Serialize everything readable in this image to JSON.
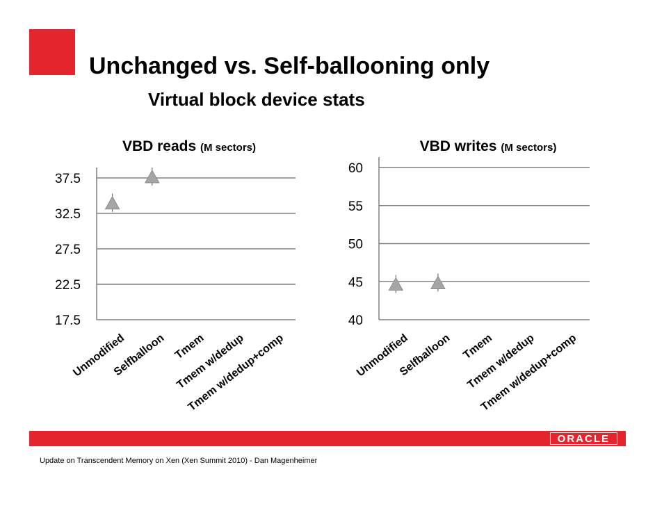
{
  "slide": {
    "title": "Unchanged vs. Self-ballooning only",
    "subtitle": "Virtual block device stats",
    "footer": "Update on Transcendent Memory on Xen (Xen Summit 2010) - Dan Magenheimer",
    "logo": "ORACLE",
    "accent_color": "#e4252c"
  },
  "chart_data": [
    {
      "type": "scatter",
      "title": "VBD reads",
      "title_unit": "(M sectors)",
      "categories": [
        "Unmodified",
        "Selfballoon",
        "Tmem",
        "Tmem w/dedup",
        "Tmem w/dedup+comp"
      ],
      "values": [
        33.9,
        37.6,
        null,
        null,
        null
      ],
      "ylim": [
        17.5,
        37.5
      ],
      "yticks": [
        "37.5",
        "32.5",
        "27.5",
        "22.5",
        "17.5"
      ],
      "grid": true,
      "marker": "triangle",
      "marker_color": "#a6a6a6"
    },
    {
      "type": "scatter",
      "title": "VBD writes",
      "title_unit": "(M sectors)",
      "categories": [
        "Unmodified",
        "Selfballoon",
        "Tmem",
        "Tmem w/dedup",
        "Tmem w/dedup+comp"
      ],
      "values": [
        44.6,
        44.8,
        null,
        null,
        null
      ],
      "ylim": [
        40,
        60
      ],
      "yticks": [
        "60",
        "55",
        "50",
        "45",
        "40"
      ],
      "grid": true,
      "marker": "triangle",
      "marker_color": "#a6a6a6"
    }
  ]
}
